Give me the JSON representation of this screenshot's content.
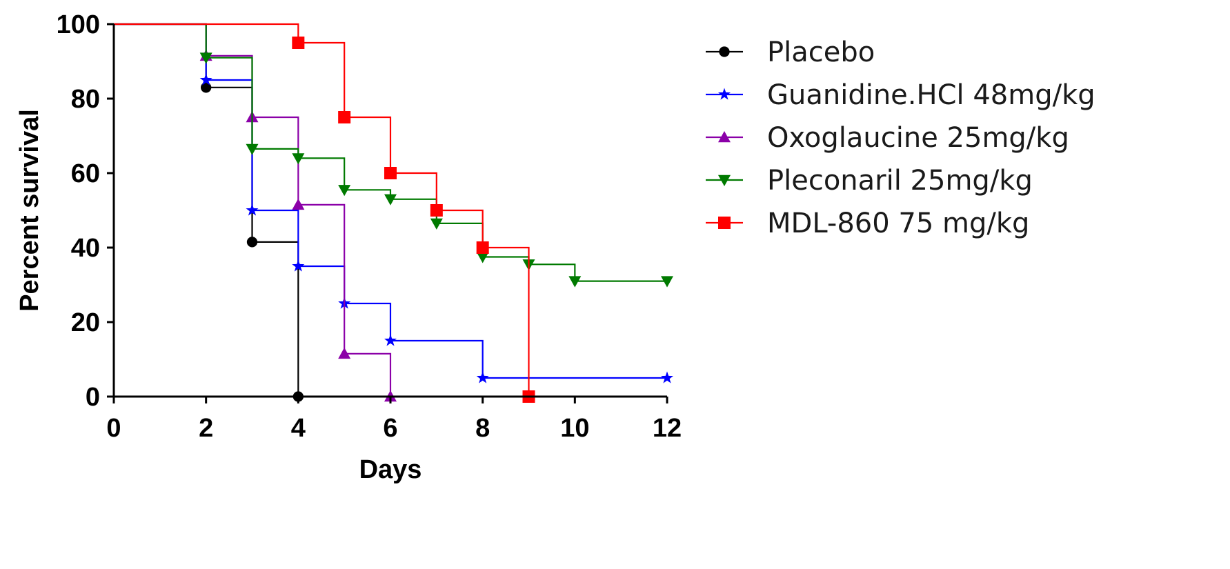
{
  "chart_data": {
    "type": "line",
    "subtype": "kaplan-meier step survival curve",
    "title": "",
    "xlabel": "Days",
    "ylabel": "Percent survival",
    "xlim": [
      0,
      12
    ],
    "ylim": [
      0,
      100
    ],
    "x_ticks": [
      0,
      2,
      4,
      6,
      8,
      10,
      12
    ],
    "y_ticks": [
      0,
      20,
      40,
      60,
      80,
      100
    ],
    "x_tick_labels": [
      "0",
      "2",
      "4",
      "6",
      "8",
      "10",
      "12"
    ],
    "y_tick_labels": [
      "0",
      "20",
      "40",
      "60",
      "80",
      "100"
    ],
    "grid": false,
    "legend_position": "right",
    "series": [
      {
        "name": "Placebo",
        "color": "#000000",
        "marker": "circle",
        "steps": [
          [
            0,
            100
          ],
          [
            2,
            83
          ],
          [
            3,
            41.5
          ],
          [
            4,
            0
          ]
        ],
        "markers": [
          [
            2,
            83
          ],
          [
            3,
            41.5
          ],
          [
            4,
            0
          ]
        ]
      },
      {
        "name": "Guanidine.HCl 48mg/kg",
        "color": "#0000ff",
        "marker": "star",
        "steps": [
          [
            0,
            100
          ],
          [
            2,
            85
          ],
          [
            3,
            50
          ],
          [
            4,
            35
          ],
          [
            5,
            25
          ],
          [
            6,
            15
          ],
          [
            8,
            5
          ],
          [
            12,
            5
          ]
        ],
        "markers": [
          [
            2,
            85
          ],
          [
            3,
            50
          ],
          [
            4,
            35
          ],
          [
            5,
            25
          ],
          [
            6,
            15
          ],
          [
            8,
            5
          ],
          [
            12,
            5
          ]
        ]
      },
      {
        "name": "Oxoglaucine 25mg/kg",
        "color": "#8b00a8",
        "marker": "triangle-up",
        "steps": [
          [
            0,
            100
          ],
          [
            2,
            91.5
          ],
          [
            3,
            75
          ],
          [
            4,
            51.5
          ],
          [
            5,
            11.5
          ],
          [
            6,
            0
          ]
        ],
        "markers": [
          [
            2,
            91.5
          ],
          [
            3,
            75
          ],
          [
            4,
            51.5
          ],
          [
            5,
            11.5
          ],
          [
            6,
            0
          ]
        ]
      },
      {
        "name": "Pleconaril 25mg/kg",
        "color": "#007a00",
        "marker": "triangle-down",
        "steps": [
          [
            0,
            100
          ],
          [
            2,
            91
          ],
          [
            3,
            66.5
          ],
          [
            4,
            64
          ],
          [
            5,
            55.5
          ],
          [
            6,
            53
          ],
          [
            7,
            46.5
          ],
          [
            8,
            37.5
          ],
          [
            9,
            35.5
          ],
          [
            10,
            31
          ],
          [
            12,
            31
          ]
        ],
        "markers": [
          [
            2,
            91
          ],
          [
            3,
            66.5
          ],
          [
            4,
            64
          ],
          [
            5,
            55.5
          ],
          [
            6,
            53
          ],
          [
            7,
            46.5
          ],
          [
            8,
            37.5
          ],
          [
            9,
            35.5
          ],
          [
            10,
            31
          ],
          [
            12,
            31
          ]
        ]
      },
      {
        "name": "MDL-860 75 mg/kg",
        "color": "#ff0000",
        "marker": "square",
        "steps": [
          [
            0,
            100
          ],
          [
            4,
            95
          ],
          [
            5,
            75
          ],
          [
            6,
            60
          ],
          [
            7,
            50
          ],
          [
            8,
            40
          ],
          [
            9,
            0
          ]
        ],
        "markers": [
          [
            4,
            95
          ],
          [
            5,
            75
          ],
          [
            6,
            60
          ],
          [
            7,
            50
          ],
          [
            8,
            40
          ],
          [
            9,
            0
          ]
        ]
      }
    ]
  }
}
